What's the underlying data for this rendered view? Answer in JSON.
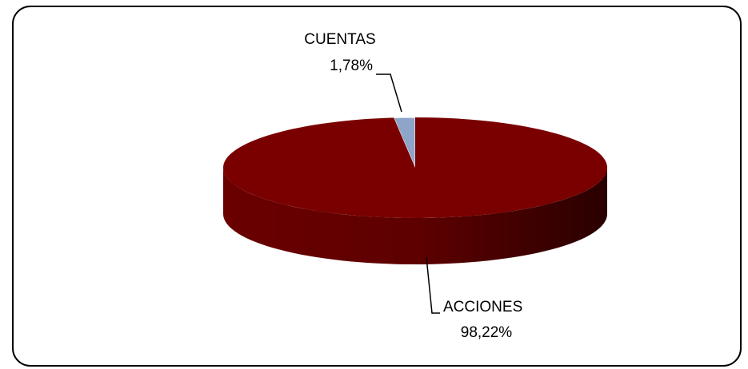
{
  "chart_data": {
    "type": "pie",
    "categories": [
      "CUENTAS",
      "ACCIONES"
    ],
    "values": [
      1.78,
      98.22
    ],
    "value_labels": [
      "1,78%",
      "98,22%"
    ],
    "colors": [
      "#8fa4c9",
      "#7a0000"
    ]
  }
}
